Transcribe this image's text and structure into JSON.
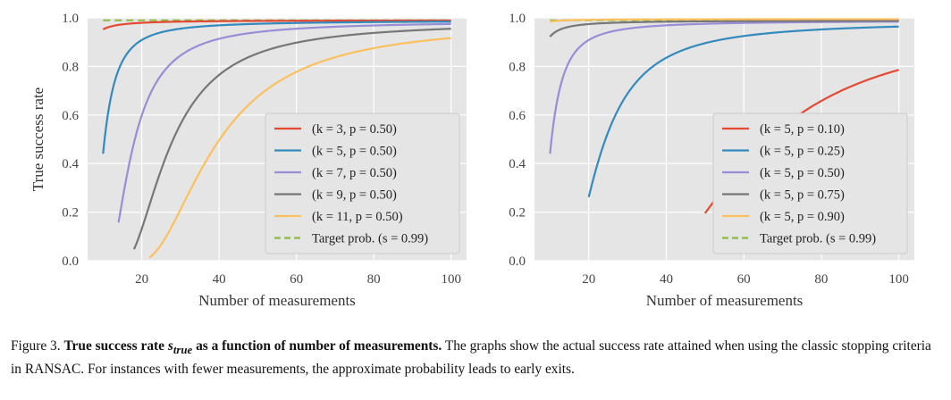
{
  "chart_data": [
    {
      "type": "line",
      "xlabel": "Number of measurements",
      "ylabel": "True success rate",
      "xlim": [
        6,
        104
      ],
      "ylim": [
        0,
        1.0
      ],
      "xticks": [
        "20",
        "40",
        "60",
        "80",
        "100"
      ],
      "yticks": [
        "0.0",
        "0.2",
        "0.4",
        "0.6",
        "0.8",
        "1.0"
      ],
      "grid": true,
      "legend_position": "lower-right",
      "series": [
        {
          "name": "(k = 3, p = 0.50)",
          "color": "#e24a33",
          "k": 3,
          "p": 0.5,
          "x_start": 10,
          "x_end": 100
        },
        {
          "name": "(k = 5, p = 0.50)",
          "color": "#348abd",
          "k": 5,
          "p": 0.5,
          "x_start": 10,
          "x_end": 100
        },
        {
          "name": "(k = 7, p = 0.50)",
          "color": "#988ed5",
          "k": 7,
          "p": 0.5,
          "x_start": 14,
          "x_end": 100
        },
        {
          "name": "(k = 9, p = 0.50)",
          "color": "#777777",
          "k": 9,
          "p": 0.5,
          "x_start": 18,
          "x_end": 100
        },
        {
          "name": "(k = 11, p = 0.50)",
          "color": "#fbc15e",
          "k": 11,
          "p": 0.5,
          "x_start": 22,
          "x_end": 100
        }
      ],
      "target": {
        "name": "Target prob. (s = 0.99)",
        "value": 0.99,
        "color": "#8eba42",
        "x_start": 10,
        "x_end": 100
      }
    },
    {
      "type": "line",
      "xlabel": "Number of measurements",
      "ylabel": "",
      "xlim": [
        6,
        104
      ],
      "ylim": [
        0,
        1.0
      ],
      "xticks": [
        "20",
        "40",
        "60",
        "80",
        "100"
      ],
      "yticks": [
        "0.0",
        "0.2",
        "0.4",
        "0.6",
        "0.8",
        "1.0"
      ],
      "grid": true,
      "legend_position": "lower-right",
      "series": [
        {
          "name": "(k = 5, p = 0.10)",
          "color": "#e24a33",
          "k": 5,
          "p": 0.1,
          "x_start": 50,
          "x_end": 100
        },
        {
          "name": "(k = 5, p = 0.25)",
          "color": "#348abd",
          "k": 5,
          "p": 0.25,
          "x_start": 20,
          "x_end": 100
        },
        {
          "name": "(k = 5, p = 0.50)",
          "color": "#988ed5",
          "k": 5,
          "p": 0.5,
          "x_start": 10,
          "x_end": 100
        },
        {
          "name": "(k = 5, p = 0.75)",
          "color": "#777777",
          "k": 5,
          "p": 0.75,
          "x_start": 10,
          "x_end": 100
        },
        {
          "name": "(k = 5, p = 0.90)",
          "color": "#fbc15e",
          "k": 5,
          "p": 0.9,
          "x_start": 10,
          "x_end": 100
        }
      ],
      "target": {
        "name": "Target prob. (s = 0.99)",
        "value": 0.99,
        "color": "#8eba42",
        "x_start": 10,
        "x_end": 100
      }
    }
  ],
  "caption": {
    "label": "Figure 3.",
    "bold_title_prefix": "True success rate ",
    "symbol_base": "s",
    "symbol_sub": "true",
    "bold_title_suffix": " as a function of number of measurements.",
    "body": " The graphs show the actual success rate attained when using the classic stopping criteria in RANSAC. For instances with fewer measurements, the approximate probability leads to early exits."
  }
}
